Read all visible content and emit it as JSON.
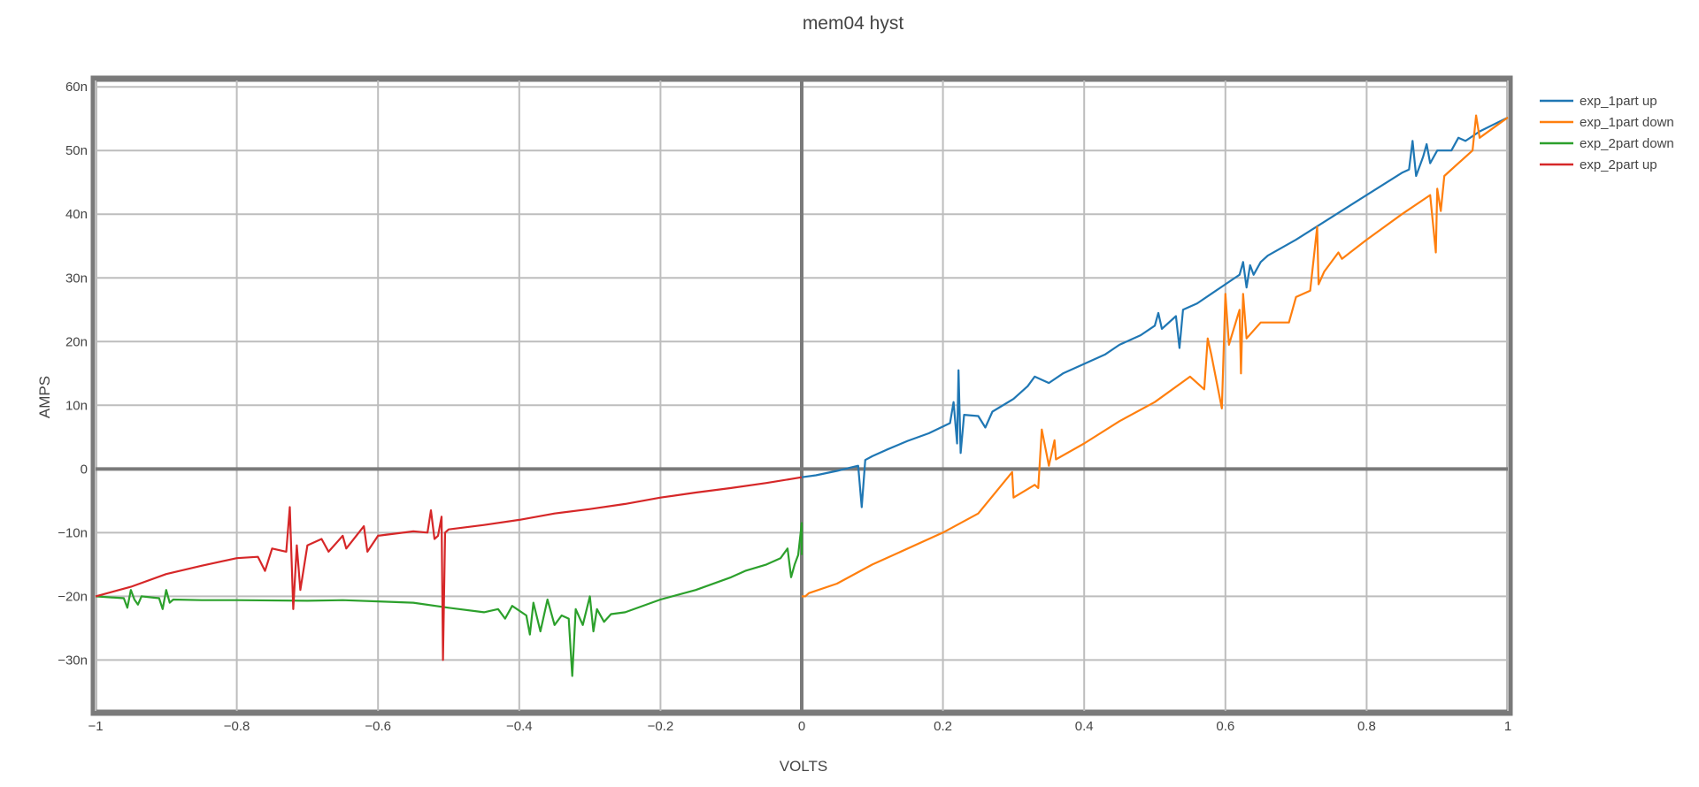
{
  "chart_data": {
    "type": "line",
    "title": "mem04 hyst",
    "xlabel": "VOLTS",
    "ylabel": "AMPS",
    "xlim": [
      -1,
      1
    ],
    "ylim": [
      -38,
      61
    ],
    "x_tick_values": [
      -1,
      -0.8,
      -0.6,
      -0.4,
      -0.2,
      0,
      0.2,
      0.4,
      0.6,
      0.8,
      1
    ],
    "x_tick_labels": [
      "−1",
      "−0.8",
      "−0.6",
      "−0.4",
      "−0.2",
      "0",
      "0.2",
      "0.4",
      "0.6",
      "0.8",
      "1"
    ],
    "y_tick_values": [
      -30,
      -20,
      -10,
      0,
      10,
      20,
      30,
      40,
      50,
      60
    ],
    "y_tick_labels": [
      "−30n",
      "−20n",
      "−10n",
      "0",
      "10n",
      "20n",
      "30n",
      "40n",
      "50n",
      "60n"
    ],
    "grid": true,
    "legend_position": "top-right",
    "series": [
      {
        "name": "exp_1part up",
        "color": "#1f77b4",
        "points": [
          [
            0.0,
            -1.3
          ],
          [
            0.02,
            -1.0
          ],
          [
            0.05,
            -0.3
          ],
          [
            0.08,
            0.5
          ],
          [
            0.085,
            -6
          ],
          [
            0.09,
            1.4
          ],
          [
            0.1,
            2.0
          ],
          [
            0.12,
            3.0
          ],
          [
            0.15,
            4.4
          ],
          [
            0.18,
            5.6
          ],
          [
            0.21,
            7.2
          ],
          [
            0.215,
            10.5
          ],
          [
            0.22,
            4
          ],
          [
            0.222,
            15.5
          ],
          [
            0.225,
            2.5
          ],
          [
            0.23,
            8.5
          ],
          [
            0.25,
            8.3
          ],
          [
            0.26,
            6.5
          ],
          [
            0.27,
            9.0
          ],
          [
            0.3,
            11.0
          ],
          [
            0.32,
            13.0
          ],
          [
            0.33,
            14.5
          ],
          [
            0.35,
            13.5
          ],
          [
            0.37,
            15
          ],
          [
            0.4,
            16.5
          ],
          [
            0.43,
            18
          ],
          [
            0.45,
            19.5
          ],
          [
            0.48,
            21
          ],
          [
            0.5,
            22.5
          ],
          [
            0.505,
            24.5
          ],
          [
            0.51,
            22
          ],
          [
            0.53,
            24
          ],
          [
            0.535,
            19
          ],
          [
            0.54,
            25
          ],
          [
            0.56,
            26
          ],
          [
            0.58,
            27.5
          ],
          [
            0.6,
            29
          ],
          [
            0.62,
            30.5
          ],
          [
            0.625,
            32.5
          ],
          [
            0.63,
            28.5
          ],
          [
            0.635,
            32
          ],
          [
            0.64,
            30.5
          ],
          [
            0.65,
            32.5
          ],
          [
            0.66,
            33.5
          ],
          [
            0.7,
            36
          ],
          [
            0.75,
            39.5
          ],
          [
            0.8,
            43
          ],
          [
            0.85,
            46.5
          ],
          [
            0.86,
            47
          ],
          [
            0.865,
            51.5
          ],
          [
            0.87,
            46
          ],
          [
            0.88,
            49
          ],
          [
            0.885,
            51
          ],
          [
            0.89,
            48
          ],
          [
            0.9,
            50
          ],
          [
            0.92,
            50
          ],
          [
            0.93,
            52
          ],
          [
            0.94,
            51.5
          ],
          [
            0.96,
            53
          ],
          [
            1.0,
            55.2
          ]
        ]
      },
      {
        "name": "exp_1part down",
        "color": "#ff7f0e",
        "points": [
          [
            1.0,
            55.2
          ],
          [
            0.96,
            52
          ],
          [
            0.955,
            55.5
          ],
          [
            0.95,
            50
          ],
          [
            0.93,
            48
          ],
          [
            0.91,
            46
          ],
          [
            0.905,
            40.5
          ],
          [
            0.9,
            44
          ],
          [
            0.898,
            34
          ],
          [
            0.89,
            43
          ],
          [
            0.85,
            40
          ],
          [
            0.8,
            36
          ],
          [
            0.765,
            33
          ],
          [
            0.76,
            34
          ],
          [
            0.74,
            31
          ],
          [
            0.732,
            29
          ],
          [
            0.73,
            38
          ],
          [
            0.72,
            28
          ],
          [
            0.7,
            27
          ],
          [
            0.69,
            23
          ],
          [
            0.65,
            23
          ],
          [
            0.63,
            20.5
          ],
          [
            0.625,
            27.5
          ],
          [
            0.622,
            15
          ],
          [
            0.62,
            25
          ],
          [
            0.605,
            19.5
          ],
          [
            0.6,
            27.5
          ],
          [
            0.595,
            9.5
          ],
          [
            0.58,
            18
          ],
          [
            0.575,
            20.5
          ],
          [
            0.57,
            12.5
          ],
          [
            0.55,
            14.5
          ],
          [
            0.5,
            10.5
          ],
          [
            0.45,
            7.5
          ],
          [
            0.4,
            4
          ],
          [
            0.36,
            1.5
          ],
          [
            0.358,
            4.5
          ],
          [
            0.35,
            0.5
          ],
          [
            0.34,
            6.2
          ],
          [
            0.335,
            -3
          ],
          [
            0.33,
            -2.5
          ],
          [
            0.3,
            -4.5
          ],
          [
            0.298,
            -0.5
          ],
          [
            0.25,
            -7
          ],
          [
            0.2,
            -10
          ],
          [
            0.1,
            -15
          ],
          [
            0.05,
            -18
          ],
          [
            0.01,
            -19.5
          ],
          [
            0.005,
            -20
          ],
          [
            0.0,
            -20
          ]
        ]
      },
      {
        "name": "exp_2part down",
        "color": "#2ca02c",
        "points": [
          [
            -1.0,
            -20
          ],
          [
            -0.96,
            -20.3
          ],
          [
            -0.955,
            -21.8
          ],
          [
            -0.95,
            -19
          ],
          [
            -0.945,
            -20.5
          ],
          [
            -0.94,
            -21.3
          ],
          [
            -0.935,
            -20
          ],
          [
            -0.91,
            -20.3
          ],
          [
            -0.905,
            -22
          ],
          [
            -0.9,
            -19
          ],
          [
            -0.895,
            -21
          ],
          [
            -0.89,
            -20.5
          ],
          [
            -0.85,
            -20.6
          ],
          [
            -0.8,
            -20.6
          ],
          [
            -0.7,
            -20.7
          ],
          [
            -0.65,
            -20.6
          ],
          [
            -0.6,
            -20.8
          ],
          [
            -0.55,
            -21
          ],
          [
            -0.5,
            -21.8
          ],
          [
            -0.45,
            -22.5
          ],
          [
            -0.43,
            -22
          ],
          [
            -0.42,
            -23.5
          ],
          [
            -0.41,
            -21.5
          ],
          [
            -0.39,
            -23
          ],
          [
            -0.385,
            -26
          ],
          [
            -0.38,
            -21
          ],
          [
            -0.37,
            -25.5
          ],
          [
            -0.36,
            -20.5
          ],
          [
            -0.35,
            -24.5
          ],
          [
            -0.34,
            -23
          ],
          [
            -0.33,
            -23.5
          ],
          [
            -0.325,
            -32.5
          ],
          [
            -0.32,
            -22
          ],
          [
            -0.31,
            -24.5
          ],
          [
            -0.3,
            -20
          ],
          [
            -0.295,
            -25.5
          ],
          [
            -0.29,
            -22
          ],
          [
            -0.28,
            -24
          ],
          [
            -0.27,
            -22.8
          ],
          [
            -0.25,
            -22.5
          ],
          [
            -0.2,
            -20.5
          ],
          [
            -0.15,
            -19
          ],
          [
            -0.1,
            -17
          ],
          [
            -0.08,
            -16
          ],
          [
            -0.05,
            -15
          ],
          [
            -0.03,
            -14
          ],
          [
            -0.02,
            -12.5
          ],
          [
            -0.015,
            -17
          ],
          [
            -0.01,
            -15
          ],
          [
            -0.005,
            -13.5
          ],
          [
            0.0,
            -8.5
          ],
          [
            0.0,
            -13.5
          ]
        ]
      },
      {
        "name": "exp_2part up",
        "color": "#d62728",
        "points": [
          [
            -1.0,
            -20
          ],
          [
            -0.95,
            -18.5
          ],
          [
            -0.9,
            -16.5
          ],
          [
            -0.85,
            -15.2
          ],
          [
            -0.8,
            -14
          ],
          [
            -0.77,
            -13.8
          ],
          [
            -0.76,
            -16
          ],
          [
            -0.75,
            -12.5
          ],
          [
            -0.73,
            -13
          ],
          [
            -0.725,
            -6
          ],
          [
            -0.72,
            -22
          ],
          [
            -0.715,
            -12
          ],
          [
            -0.71,
            -19
          ],
          [
            -0.7,
            -12
          ],
          [
            -0.68,
            -11
          ],
          [
            -0.67,
            -13
          ],
          [
            -0.65,
            -10.5
          ],
          [
            -0.645,
            -12.5
          ],
          [
            -0.62,
            -9
          ],
          [
            -0.615,
            -13
          ],
          [
            -0.6,
            -10.5
          ],
          [
            -0.55,
            -9.8
          ],
          [
            -0.53,
            -10
          ],
          [
            -0.525,
            -6.5
          ],
          [
            -0.52,
            -11
          ],
          [
            -0.515,
            -10.5
          ],
          [
            -0.51,
            -7.5
          ],
          [
            -0.508,
            -30
          ],
          [
            -0.505,
            -10
          ],
          [
            -0.5,
            -9.5
          ],
          [
            -0.45,
            -8.8
          ],
          [
            -0.4,
            -8
          ],
          [
            -0.35,
            -7
          ],
          [
            -0.3,
            -6.3
          ],
          [
            -0.25,
            -5.5
          ],
          [
            -0.2,
            -4.5
          ],
          [
            -0.15,
            -3.7
          ],
          [
            -0.1,
            -3
          ],
          [
            -0.05,
            -2.2
          ],
          [
            0.0,
            -1.3
          ]
        ]
      }
    ]
  }
}
